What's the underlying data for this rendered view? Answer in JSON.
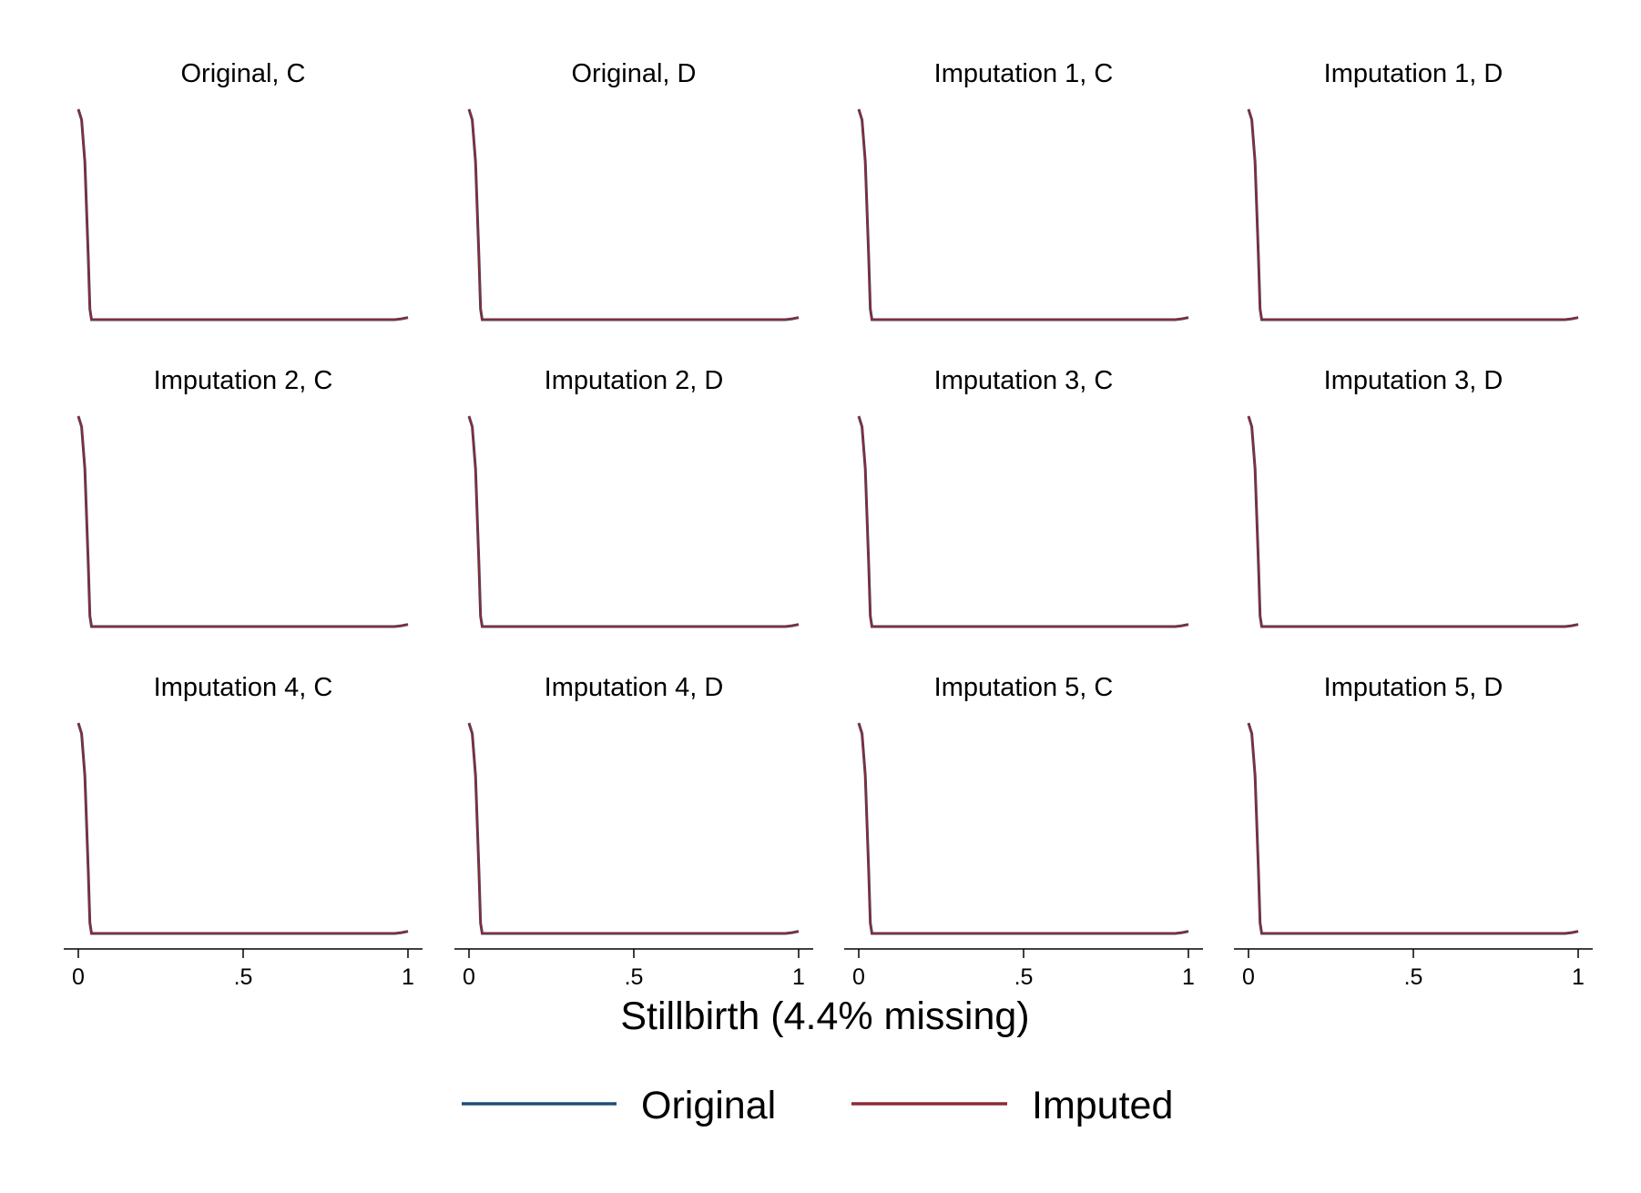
{
  "chart_data": {
    "type": "line",
    "title": "",
    "xlabel": "Stillbirth (4.4% missing)",
    "ylabel": "",
    "xlim": [
      0,
      1
    ],
    "x_ticks": [
      "0",
      ".5",
      "1"
    ],
    "x_tick_values": [
      0,
      0.5,
      1
    ],
    "grid": false,
    "legend_position": "bottom",
    "legend": [
      {
        "name": "Original",
        "color": "#1f4e79"
      },
      {
        "name": "Imputed",
        "color": "#8b2b35"
      }
    ],
    "panels": [
      {
        "title": "Original, C"
      },
      {
        "title": "Original, D"
      },
      {
        "title": "Imputation 1, C"
      },
      {
        "title": "Imputation 1, D"
      },
      {
        "title": "Imputation 2, C"
      },
      {
        "title": "Imputation 2, D"
      },
      {
        "title": "Imputation 3, C"
      },
      {
        "title": "Imputation 3, D"
      },
      {
        "title": "Imputation 4, C"
      },
      {
        "title": "Imputation 4, D"
      },
      {
        "title": "Imputation 5, C"
      },
      {
        "title": "Imputation 5, D"
      }
    ],
    "density_curve": {
      "x": [
        0.0,
        0.01,
        0.02,
        0.03,
        0.035,
        0.04,
        0.05,
        0.1,
        0.5,
        0.9,
        0.96,
        0.98,
        1.0
      ],
      "y": [
        1.0,
        0.95,
        0.75,
        0.3,
        0.05,
        0.0,
        0.0,
        0.0,
        0.0,
        0.0,
        0.0,
        0.004,
        0.01
      ]
    }
  }
}
